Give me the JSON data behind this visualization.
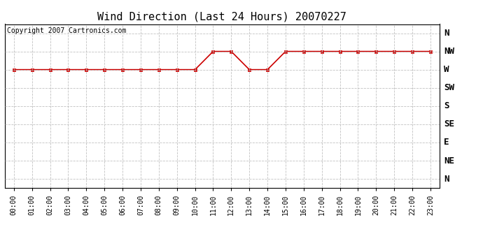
{
  "title": "Wind Direction (Last 24 Hours) 20070227",
  "copyright_text": "Copyright 2007 Cartronics.com",
  "background_color": "#ffffff",
  "plot_background_color": "#ffffff",
  "line_color": "#cc0000",
  "marker_color": "#cc0000",
  "grid_color": "#bbbbbb",
  "hours": [
    0,
    1,
    2,
    3,
    4,
    5,
    6,
    7,
    8,
    9,
    10,
    11,
    12,
    13,
    14,
    15,
    16,
    17,
    18,
    19,
    20,
    21,
    22,
    23
  ],
  "wind_values": [
    3,
    3,
    3,
    3,
    3,
    3,
    3,
    3,
    3,
    3,
    3,
    2,
    2,
    3,
    3,
    2,
    2,
    2,
    2,
    2,
    2,
    2,
    2,
    2
  ],
  "ytick_labels": [
    "N",
    "NW",
    "W",
    "SW",
    "S",
    "SE",
    "E",
    "NE",
    "N"
  ],
  "ytick_values": [
    1,
    2,
    3,
    4,
    5,
    6,
    7,
    8,
    9
  ],
  "xtick_labels": [
    "00:00",
    "01:00",
    "02:00",
    "03:00",
    "04:00",
    "05:00",
    "06:00",
    "07:00",
    "08:00",
    "09:00",
    "10:00",
    "11:00",
    "12:00",
    "13:00",
    "14:00",
    "15:00",
    "16:00",
    "17:00",
    "18:00",
    "19:00",
    "20:00",
    "21:00",
    "22:00",
    "23:00"
  ],
  "xlim": [
    -0.5,
    23.5
  ],
  "ylim": [
    9.5,
    0.5
  ],
  "title_fontsize": 11,
  "tick_fontsize": 7,
  "copyright_fontsize": 7
}
